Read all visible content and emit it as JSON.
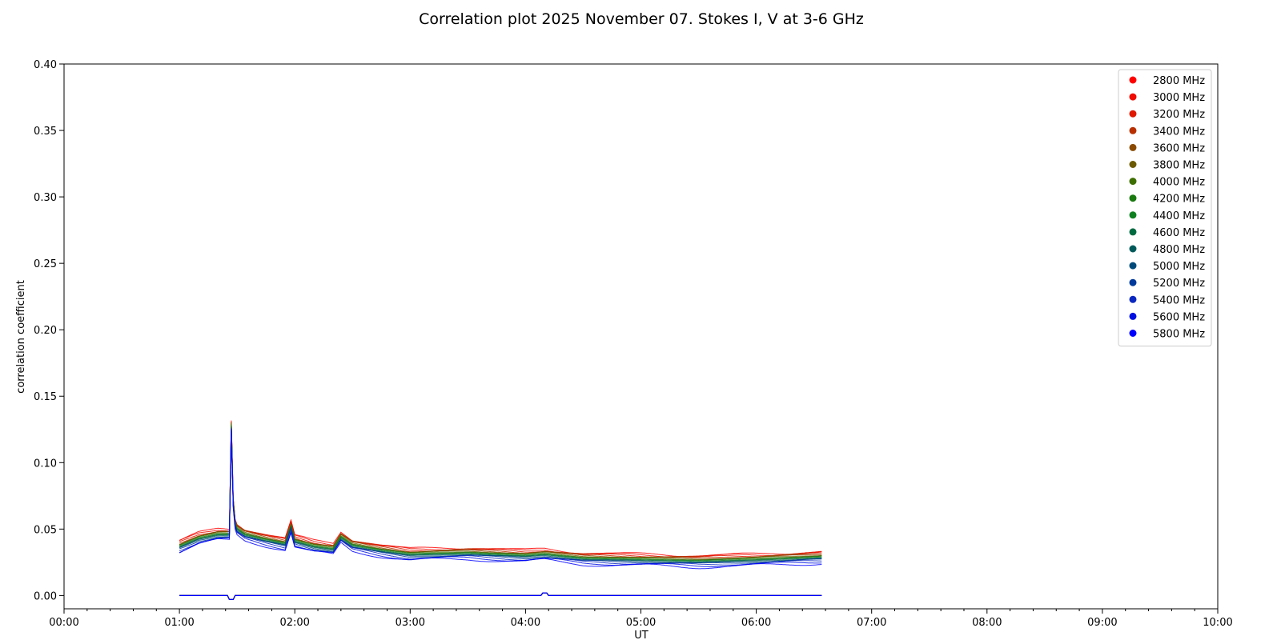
{
  "chart_data": {
    "type": "scatter",
    "title": "Correlation plot 2025 November 07. Stokes I, V at 3-6 GHz",
    "xlabel": "UT",
    "ylabel": "correlation coefficient",
    "xlim": [
      "00:00",
      "10:00"
    ],
    "ylim": [
      -0.01,
      0.4
    ],
    "xticks": [
      "00:00",
      "01:00",
      "02:00",
      "03:00",
      "04:00",
      "05:00",
      "06:00",
      "07:00",
      "08:00",
      "09:00",
      "10:00"
    ],
    "yticks": [
      "0.00",
      "0.05",
      "0.10",
      "0.15",
      "0.20",
      "0.25",
      "0.30",
      "0.35",
      "0.40"
    ],
    "grid": false,
    "legend_position": "top-right",
    "stokes_I_profile": {
      "x": [
        "01:00",
        "01:10",
        "01:20",
        "01:26",
        "01:27",
        "01:28",
        "01:29",
        "01:30",
        "01:34",
        "01:45",
        "01:55",
        "01:58",
        "02:00",
        "02:10",
        "02:20",
        "02:24",
        "02:30",
        "02:45",
        "02:55",
        "03:00",
        "03:30",
        "04:00",
        "04:10",
        "04:30",
        "05:00",
        "05:30",
        "06:00",
        "06:34"
      ],
      "y": [
        0.037,
        0.043,
        0.046,
        0.046,
        0.128,
        0.07,
        0.054,
        0.05,
        0.046,
        0.042,
        0.039,
        0.052,
        0.041,
        0.037,
        0.035,
        0.044,
        0.038,
        0.034,
        0.032,
        0.031,
        0.032,
        0.03,
        0.031,
        0.028,
        0.027,
        0.026,
        0.027,
        0.029
      ]
    },
    "stokes_V_level": 0.0,
    "series": [
      {
        "name": "2800 MHz",
        "color": "#ff0000",
        "offset": 0.004
      },
      {
        "name": "3000 MHz",
        "color": "#ef0c00",
        "offset": 0.0035
      },
      {
        "name": "3200 MHz",
        "color": "#df1800",
        "offset": 0.003
      },
      {
        "name": "3400 MHz",
        "color": "#b83000",
        "offset": 0.0025
      },
      {
        "name": "3600 MHz",
        "color": "#8a4a00",
        "offset": 0.002
      },
      {
        "name": "3800 MHz",
        "color": "#6b5a00",
        "offset": 0.0015
      },
      {
        "name": "4000 MHz",
        "color": "#3d6e00",
        "offset": 0.001
      },
      {
        "name": "4200 MHz",
        "color": "#1a7a10",
        "offset": 0.0005
      },
      {
        "name": "4400 MHz",
        "color": "#0f8020",
        "offset": 0.0
      },
      {
        "name": "4600 MHz",
        "color": "#006a40",
        "offset": -0.0005
      },
      {
        "name": "4800 MHz",
        "color": "#005a5a",
        "offset": -0.001
      },
      {
        "name": "5000 MHz",
        "color": "#004a7a",
        "offset": -0.0015
      },
      {
        "name": "5200 MHz",
        "color": "#003a9a",
        "offset": -0.002
      },
      {
        "name": "5400 MHz",
        "color": "#0a28c0",
        "offset": -0.0028
      },
      {
        "name": "5600 MHz",
        "color": "#0010e0",
        "offset": -0.0036
      },
      {
        "name": "5800 MHz",
        "color": "#0000ff",
        "offset": -0.0045
      }
    ]
  }
}
